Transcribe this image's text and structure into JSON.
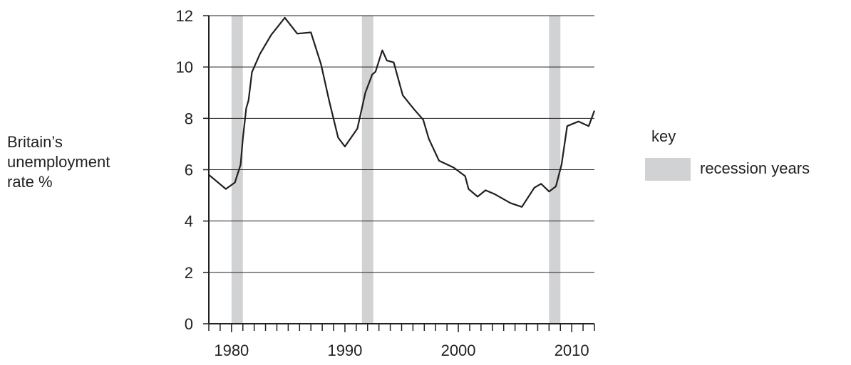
{
  "chart_data": {
    "type": "line",
    "title": "",
    "xlabel": "",
    "ylabel_lines": [
      "Britain’s",
      "unemployment",
      "rate %"
    ],
    "xlim": [
      1978,
      2012
    ],
    "ylim": [
      0,
      12
    ],
    "x_ticks": [
      1980,
      1990,
      2000,
      2010
    ],
    "y_ticks": [
      0,
      2,
      4,
      6,
      8,
      10,
      12
    ],
    "grid": "horizontal",
    "line_color": "#231f20",
    "band_color": "#d1d2d4",
    "recession_bands": [
      {
        "start": 1980.0,
        "end": 1981.0
      },
      {
        "start": 1991.5,
        "end": 1992.5
      },
      {
        "start": 2008.0,
        "end": 2009.0
      }
    ],
    "series": [
      {
        "points": [
          [
            1978.0,
            5.8
          ],
          [
            1979.5,
            5.25
          ],
          [
            1980.3,
            5.5
          ],
          [
            1980.8,
            6.2
          ],
          [
            1981.0,
            7.2
          ],
          [
            1981.3,
            8.4
          ],
          [
            1981.5,
            8.7
          ],
          [
            1981.8,
            9.8
          ],
          [
            1982.5,
            10.5
          ],
          [
            1983.5,
            11.25
          ],
          [
            1984.7,
            11.92
          ],
          [
            1985.8,
            11.3
          ],
          [
            1987.0,
            11.35
          ],
          [
            1987.9,
            10.1
          ],
          [
            1988.6,
            8.7
          ],
          [
            1989.4,
            7.25
          ],
          [
            1990.0,
            6.9
          ],
          [
            1991.1,
            7.6
          ],
          [
            1991.8,
            9.0
          ],
          [
            1992.4,
            9.7
          ],
          [
            1992.7,
            9.82
          ],
          [
            1993.3,
            10.65
          ],
          [
            1993.7,
            10.25
          ],
          [
            1994.3,
            10.18
          ],
          [
            1995.1,
            8.9
          ],
          [
            1996.1,
            8.35
          ],
          [
            1996.9,
            7.95
          ],
          [
            1997.4,
            7.2
          ],
          [
            1998.3,
            6.35
          ],
          [
            1999.6,
            6.08
          ],
          [
            2000.6,
            5.75
          ],
          [
            2000.9,
            5.25
          ],
          [
            2001.7,
            4.95
          ],
          [
            2002.4,
            5.2
          ],
          [
            2003.2,
            5.05
          ],
          [
            2004.6,
            4.7
          ],
          [
            2005.6,
            4.55
          ],
          [
            2006.7,
            5.3
          ],
          [
            2007.3,
            5.45
          ],
          [
            2008.0,
            5.15
          ],
          [
            2008.6,
            5.35
          ],
          [
            2009.1,
            6.2
          ],
          [
            2009.6,
            7.7
          ],
          [
            2010.6,
            7.88
          ],
          [
            2011.5,
            7.7
          ],
          [
            2012.0,
            8.3
          ]
        ]
      }
    ]
  },
  "key": {
    "title": "key",
    "label": "recession years"
  }
}
